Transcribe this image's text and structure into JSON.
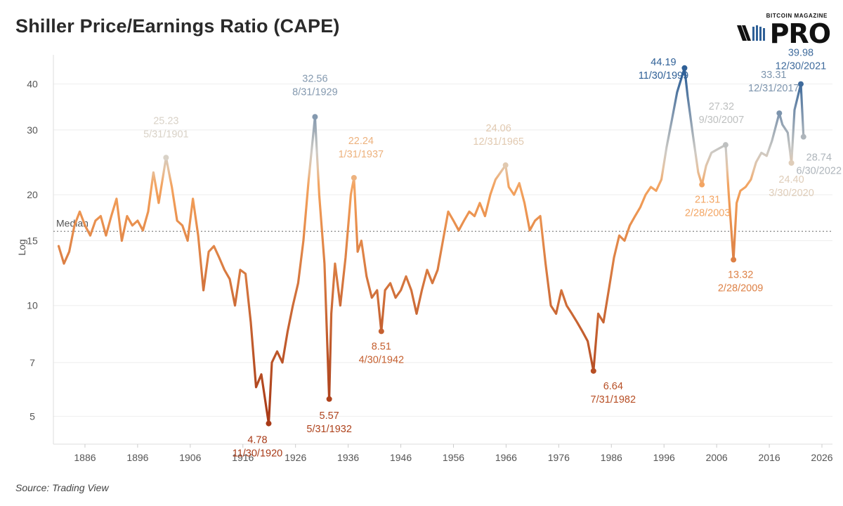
{
  "title": "Shiller Price/Earnings Ratio (CAPE)",
  "logo": {
    "small": "BITCOIN MAGAZINE",
    "big": "PRO"
  },
  "source": "Source: Trading View",
  "chart_data": {
    "type": "line",
    "title": "Shiller Price/Earnings Ratio (CAPE)",
    "ylabel": "Log",
    "xlabel": "",
    "yscale": "log",
    "ylim": [
      4.2,
      48
    ],
    "xlim": [
      1880,
      2028
    ],
    "xticks": [
      1886,
      1896,
      1906,
      1916,
      1926,
      1936,
      1946,
      1956,
      1966,
      1976,
      1986,
      1996,
      2006,
      2016,
      2026
    ],
    "yticks": [
      5,
      7,
      10,
      15,
      20,
      30,
      40
    ],
    "grid": true,
    "median": {
      "label": "Median",
      "value": 15.9
    },
    "color_scale": {
      "low": "#a83a17",
      "mid": "#f5a15a",
      "neutral": "#dcd4c8",
      "high": "#2f6097"
    },
    "series": [
      {
        "x": [
          1881.0,
          1882.0,
          1883.0,
          1884.0,
          1885.0,
          1886.0,
          1887.0,
          1888.0,
          1889.0,
          1890.0,
          1891.0,
          1892.0,
          1893.0,
          1894.0,
          1895.0,
          1896.0,
          1897.0,
          1898.0,
          1899.0,
          1900.0,
          1901.4,
          1902.5,
          1903.5,
          1904.5,
          1905.5,
          1906.5,
          1907.5,
          1908.5,
          1909.5,
          1910.5,
          1911.5,
          1912.5,
          1913.5,
          1914.5,
          1915.5,
          1916.5,
          1917.5,
          1918.5,
          1919.5,
          1920.9,
          1921.5,
          1922.5,
          1923.5,
          1924.5,
          1925.5,
          1926.5,
          1927.5,
          1928.5,
          1929.7,
          1930.5,
          1931.5,
          1932.4,
          1932.8,
          1933.5,
          1934.5,
          1935.5,
          1936.5,
          1937.1,
          1937.8,
          1938.5,
          1939.5,
          1940.5,
          1941.5,
          1942.3,
          1943.0,
          1944.0,
          1945.0,
          1946.0,
          1947.0,
          1948.0,
          1949.0,
          1950.0,
          1951.0,
          1952.0,
          1953.0,
          1954.0,
          1955.0,
          1956.0,
          1957.0,
          1958.0,
          1959.0,
          1960.0,
          1961.0,
          1962.0,
          1963.0,
          1964.0,
          1965.9,
          1966.5,
          1967.5,
          1968.5,
          1969.5,
          1970.5,
          1971.5,
          1972.5,
          1973.5,
          1974.5,
          1975.5,
          1976.5,
          1977.5,
          1978.5,
          1979.5,
          1980.5,
          1981.5,
          1982.6,
          1983.5,
          1984.5,
          1985.5,
          1986.5,
          1987.5,
          1988.5,
          1989.5,
          1990.5,
          1991.5,
          1992.5,
          1993.5,
          1994.5,
          1995.5,
          1996.5,
          1997.5,
          1998.5,
          1999.9,
          2000.5,
          2001.5,
          2002.5,
          2003.2,
          2004.0,
          2005.0,
          2006.0,
          2007.7,
          2008.3,
          2009.2,
          2009.8,
          2010.5,
          2011.5,
          2012.5,
          2013.5,
          2014.5,
          2015.5,
          2016.5,
          2017.9,
          2018.5,
          2019.5,
          2020.2,
          2020.8,
          2021.99,
          2022.5
        ],
        "y": [
          14.5,
          13.0,
          14.0,
          16.5,
          18.0,
          16.5,
          15.5,
          17.0,
          17.5,
          15.5,
          17.5,
          19.5,
          15.0,
          17.5,
          16.5,
          17.0,
          16.0,
          18.0,
          23.0,
          19.0,
          25.23,
          21.0,
          17.0,
          16.5,
          15.0,
          19.5,
          15.5,
          11.0,
          14.0,
          14.5,
          13.5,
          12.5,
          11.8,
          10.0,
          12.5,
          12.2,
          9.0,
          6.0,
          6.5,
          4.78,
          7.0,
          7.5,
          7.0,
          8.5,
          10.0,
          11.5,
          15.0,
          22.0,
          32.56,
          20.0,
          13.0,
          5.57,
          9.5,
          13.0,
          10.0,
          13.5,
          20.0,
          22.24,
          14.0,
          15.0,
          12.0,
          10.5,
          11.0,
          8.51,
          11.0,
          11.5,
          10.5,
          11.0,
          12.0,
          11.0,
          9.5,
          11.0,
          12.5,
          11.5,
          12.5,
          15.0,
          18.0,
          17.0,
          16.0,
          17.0,
          18.0,
          17.5,
          19.0,
          17.5,
          20.0,
          22.0,
          24.06,
          21.0,
          20.0,
          21.5,
          19.0,
          16.0,
          17.0,
          17.5,
          13.0,
          10.0,
          9.5,
          11.0,
          10.0,
          9.5,
          9.0,
          8.5,
          8.0,
          6.64,
          9.5,
          9.0,
          11.0,
          13.5,
          15.5,
          15.0,
          16.5,
          17.5,
          18.5,
          20.0,
          21.0,
          20.5,
          22.0,
          27.0,
          32.0,
          38.0,
          44.19,
          37.0,
          29.0,
          23.0,
          21.31,
          24.0,
          26.0,
          26.5,
          27.32,
          20.0,
          13.32,
          19.0,
          20.5,
          21.0,
          22.0,
          24.5,
          26.0,
          25.5,
          28.0,
          33.31,
          31.0,
          29.5,
          24.4,
          34.0,
          39.98,
          28.74
        ]
      }
    ],
    "annotations": [
      {
        "value": "25.23",
        "date": "5/31/1901",
        "year": 1901.4,
        "y": 25.23
      },
      {
        "value": "4.78",
        "date": "11/30/1920",
        "year": 1920.9,
        "y": 4.78
      },
      {
        "value": "32.56",
        "date": "8/31/1929",
        "year": 1929.7,
        "y": 32.56
      },
      {
        "value": "5.57",
        "date": "5/31/1932",
        "year": 1932.4,
        "y": 5.57
      },
      {
        "value": "22.24",
        "date": "1/31/1937",
        "year": 1937.1,
        "y": 22.24
      },
      {
        "value": "8.51",
        "date": "4/30/1942",
        "year": 1942.3,
        "y": 8.51
      },
      {
        "value": "24.06",
        "date": "12/31/1965",
        "year": 1965.9,
        "y": 24.06
      },
      {
        "value": "6.64",
        "date": "7/31/1982",
        "year": 1982.6,
        "y": 6.64
      },
      {
        "value": "44.19",
        "date": "11/30/1999",
        "year": 1999.9,
        "y": 44.19
      },
      {
        "value": "21.31",
        "date": "2/28/2003",
        "year": 2003.2,
        "y": 21.31
      },
      {
        "value": "27.32",
        "date": "9/30/2007",
        "year": 2007.7,
        "y": 27.32
      },
      {
        "value": "13.32",
        "date": "2/28/2009",
        "year": 2009.2,
        "y": 13.32
      },
      {
        "value": "33.31",
        "date": "12/31/2017",
        "year": 2017.9,
        "y": 33.31
      },
      {
        "value": "24.40",
        "date": "3/30/2020",
        "year": 2020.2,
        "y": 24.4
      },
      {
        "value": "39.98",
        "date": "12/30/2021",
        "year": 2021.99,
        "y": 39.98
      },
      {
        "value": "28.74",
        "date": "6/30/2022",
        "year": 2022.5,
        "y": 28.74
      }
    ]
  }
}
